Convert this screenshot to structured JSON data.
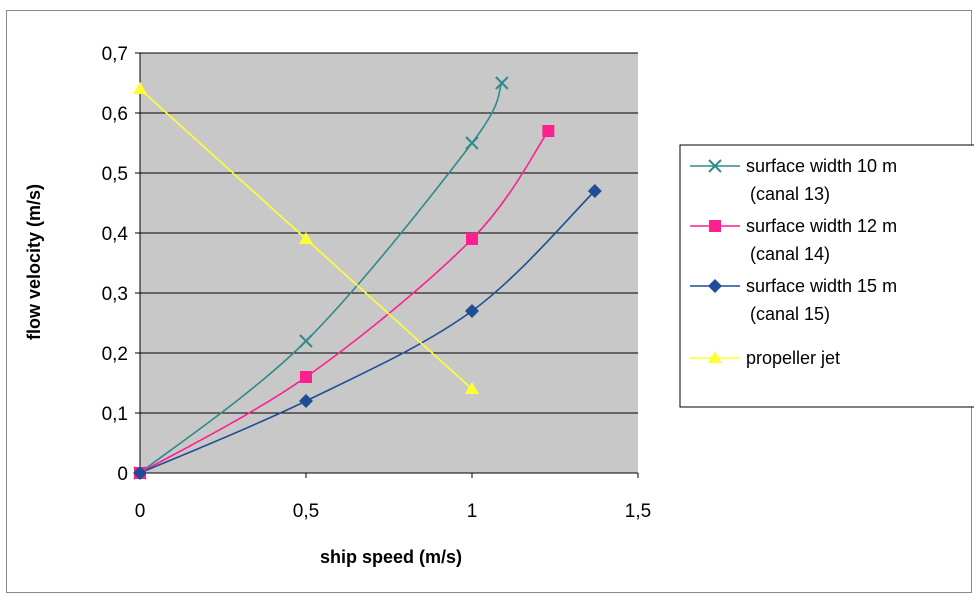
{
  "chart_data": {
    "type": "line",
    "xlabel": "ship speed (m/s)",
    "ylabel": "flow velocity (m/s)",
    "xlim": [
      0,
      1.5
    ],
    "ylim": [
      0,
      0.7
    ],
    "x_ticks": [
      "0",
      "0,5",
      "1",
      "1,5"
    ],
    "y_ticks": [
      "0",
      "0,1",
      "0,2",
      "0,3",
      "0,4",
      "0,5",
      "0,6",
      "0,7"
    ],
    "grid": "horizontal",
    "legend_position": "right",
    "series": [
      {
        "name": "surface width 10 m",
        "name_line2": "(canal 13)",
        "color": "#2e8b8b",
        "marker": "x",
        "points": [
          [
            0,
            0.0
          ],
          [
            0.5,
            0.22
          ],
          [
            1.0,
            0.55
          ],
          [
            1.09,
            0.65
          ]
        ]
      },
      {
        "name": "surface width 12 m",
        "name_line2": "(canal 14)",
        "color": "#ff1f8e",
        "marker": "square",
        "points": [
          [
            0,
            0.0
          ],
          [
            0.5,
            0.16
          ],
          [
            1.0,
            0.39
          ],
          [
            1.23,
            0.57
          ]
        ]
      },
      {
        "name": "surface width 15 m",
        "name_line2": "(canal 15)",
        "color": "#1f4e96",
        "marker": "diamond",
        "points": [
          [
            0,
            0.0
          ],
          [
            0.5,
            0.12
          ],
          [
            1.0,
            0.27
          ],
          [
            1.37,
            0.47
          ]
        ]
      },
      {
        "name": "propeller jet",
        "name_line2": "",
        "color": "#ffff33",
        "marker": "triangle",
        "points": [
          [
            0,
            0.64
          ],
          [
            0.5,
            0.39
          ],
          [
            1.0,
            0.14
          ]
        ]
      }
    ]
  }
}
